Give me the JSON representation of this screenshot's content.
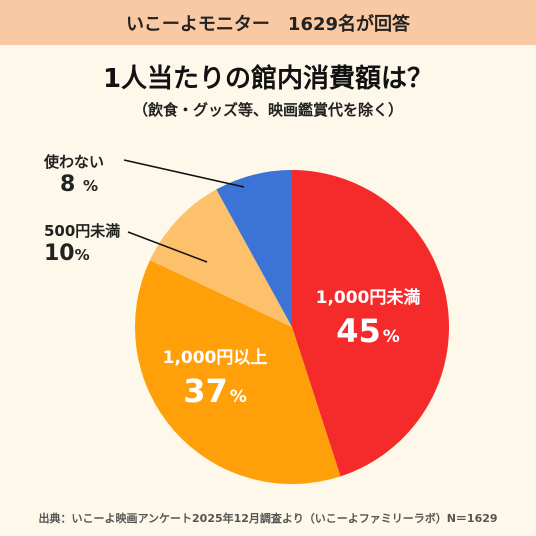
{
  "banner": "いこーよモニター　1629名が回答",
  "title": "1人当たりの館内消費額は？",
  "subtitle": "（飲食・グッズ等、映画鑑賞代を除く）",
  "source": "出典：いこーよ映画アンケート2025年12月調査より（いこーよファミリーラボ）N＝1629",
  "chart_data": {
    "type": "pie",
    "title": "1人当たりの館内消費額は？",
    "slices": [
      {
        "label": "1,000円未満",
        "value": 45,
        "pct_label": "45",
        "color": "#f52a2a"
      },
      {
        "label": "1,000円以上",
        "value": 37,
        "pct_label": "37",
        "color": "#ff9f0a"
      },
      {
        "label": "500円未満",
        "value": 10,
        "pct_label": "10",
        "color": "#fec16b"
      },
      {
        "label": "使わない",
        "value": 8,
        "pct_label": "8 ",
        "color": "#3b73d6"
      }
    ],
    "unit": "%"
  }
}
